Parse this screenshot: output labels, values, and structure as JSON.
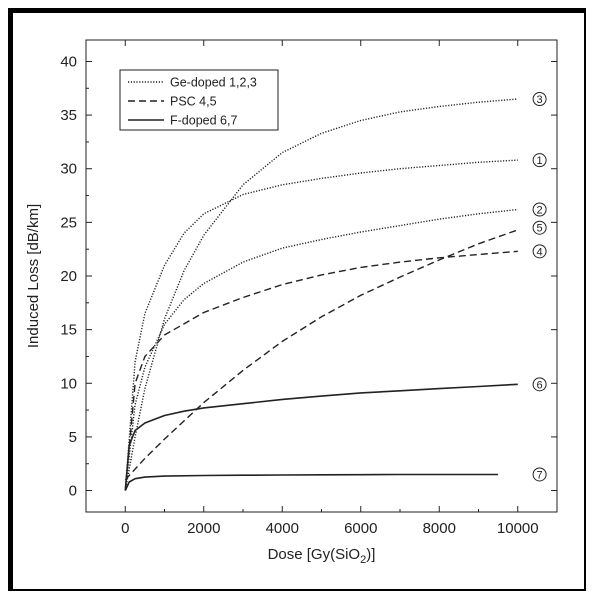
{
  "chart_data": {
    "type": "line",
    "xlabel": "Dose [Gy(SiO",
    "xlabel_sub": "2",
    "xlabel_end": ")]",
    "ylabel": "Induced Loss [dB/km]",
    "xlim": [
      -1000,
      11000
    ],
    "ylim": [
      -2,
      42
    ],
    "x_ticks": [
      0,
      2000,
      4000,
      6000,
      8000,
      10000
    ],
    "y_ticks": [
      0,
      5,
      10,
      15,
      20,
      25,
      30,
      35,
      40
    ],
    "x_tick_labels": [
      "0",
      "2000",
      "4000",
      "6000",
      "8000",
      "10000"
    ],
    "y_tick_labels": [
      "0",
      "5",
      "10",
      "15",
      "20",
      "25",
      "30",
      "35",
      "40"
    ],
    "legend_position": "top-left",
    "legend": [
      {
        "label": "Ge-doped 1,2,3",
        "style": "dotted"
      },
      {
        "label": "PSC 4,5",
        "style": "dashed"
      },
      {
        "label": "F-doped 6,7",
        "style": "solid"
      }
    ],
    "series": [
      {
        "name": "1",
        "style": "dotted",
        "x": [
          0,
          250,
          500,
          1000,
          1500,
          2000,
          3000,
          4000,
          5000,
          6000,
          7000,
          8000,
          9000,
          10000
        ],
        "y": [
          0,
          12,
          16.5,
          21,
          24,
          25.8,
          27.6,
          28.5,
          29.1,
          29.6,
          30,
          30.3,
          30.6,
          30.8
        ]
      },
      {
        "name": "2",
        "style": "dotted",
        "x": [
          0,
          250,
          500,
          1000,
          1500,
          2000,
          3000,
          4000,
          5000,
          6000,
          7000,
          8000,
          9000,
          10000
        ],
        "y": [
          0,
          8,
          11.5,
          15.5,
          17.8,
          19.3,
          21.3,
          22.6,
          23.4,
          24.1,
          24.7,
          25.3,
          25.8,
          26.2
        ]
      },
      {
        "name": "3",
        "style": "dotted",
        "x": [
          0,
          250,
          500,
          1000,
          1500,
          2000,
          3000,
          4000,
          5000,
          6000,
          7000,
          8000,
          9000,
          10000
        ],
        "y": [
          0,
          5,
          9.5,
          16,
          20.5,
          23.8,
          28.5,
          31.5,
          33.3,
          34.5,
          35.3,
          35.8,
          36.2,
          36.5
        ]
      },
      {
        "name": "4",
        "style": "dashed",
        "x": [
          0,
          250,
          500,
          1000,
          2000,
          3000,
          4000,
          5000,
          6000,
          7000,
          8000,
          9000,
          10000
        ],
        "y": [
          0,
          10,
          12.5,
          14.5,
          16.6,
          18,
          19.2,
          20.1,
          20.8,
          21.3,
          21.7,
          22,
          22.3
        ]
      },
      {
        "name": "5",
        "style": "dashed",
        "x": [
          0,
          500,
          1000,
          2000,
          3000,
          4000,
          5000,
          6000,
          7000,
          8000,
          9000,
          10000
        ],
        "y": [
          1,
          3,
          4.8,
          8.2,
          11.2,
          13.9,
          16.2,
          18.2,
          19.9,
          21.5,
          23,
          24.3
        ]
      },
      {
        "name": "6",
        "style": "solid",
        "x": [
          0,
          100,
          250,
          500,
          1000,
          1500,
          2000,
          3000,
          4000,
          5000,
          6000,
          7000,
          8000,
          9000,
          10000
        ],
        "y": [
          0,
          4.2,
          5.6,
          6.3,
          7,
          7.4,
          7.7,
          8.1,
          8.5,
          8.8,
          9.1,
          9.3,
          9.5,
          9.7,
          9.9
        ]
      },
      {
        "name": "7",
        "style": "solid",
        "x": [
          0,
          100,
          250,
          500,
          1000,
          2000,
          3000,
          4000,
          5000,
          6000,
          7000,
          8000,
          9000,
          9500
        ],
        "y": [
          0,
          0.8,
          1.1,
          1.25,
          1.35,
          1.4,
          1.43,
          1.45,
          1.47,
          1.48,
          1.5,
          1.5,
          1.5,
          1.5
        ]
      }
    ],
    "curve_labels": [
      {
        "text": "3",
        "x": 10200,
        "y": 36.5
      },
      {
        "text": "1",
        "x": 10200,
        "y": 30.8
      },
      {
        "text": "2",
        "x": 10200,
        "y": 26.2
      },
      {
        "text": "5",
        "x": 10200,
        "y": 24.5
      },
      {
        "text": "4",
        "x": 10200,
        "y": 22.3
      },
      {
        "text": "6",
        "x": 10200,
        "y": 9.9
      },
      {
        "text": "7",
        "x": 10200,
        "y": 1.5
      }
    ]
  }
}
